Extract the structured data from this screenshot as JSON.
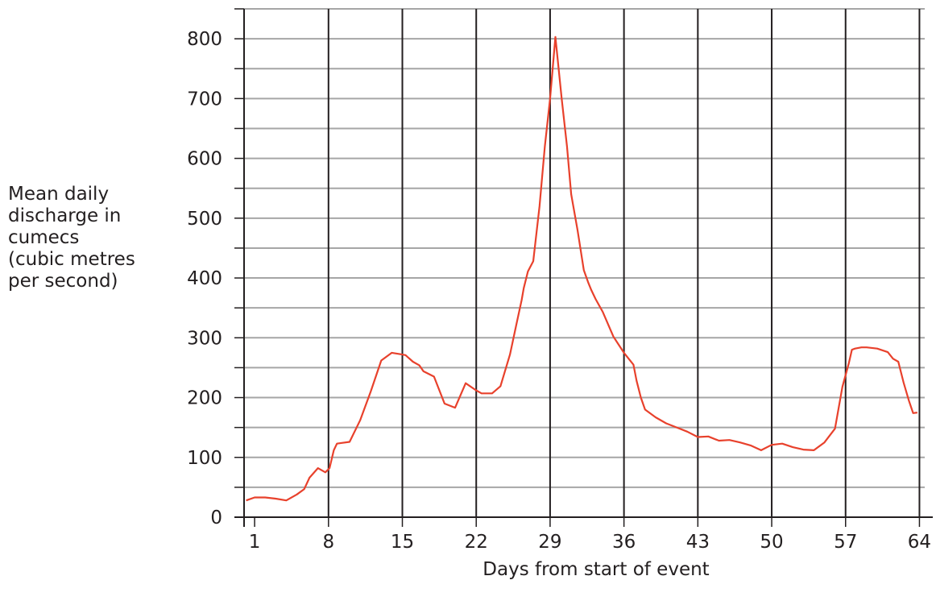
{
  "chart_data": {
    "type": "line",
    "xlabel": "Days from start of event",
    "ylabel": "Mean daily\ndischarge in\ncumecs\n(cubic metres\nper second)",
    "xlim": [
      0,
      64.5
    ],
    "ylim": [
      0,
      850
    ],
    "x_ticks": [
      1,
      8,
      15,
      22,
      29,
      36,
      43,
      50,
      57,
      64
    ],
    "y_ticks": [
      0,
      100,
      200,
      300,
      400,
      500,
      600,
      700,
      800
    ],
    "y_minor_step": 50,
    "grid": true,
    "series": [
      {
        "color": "#e8412c",
        "x": [
          0.2,
          1,
          2,
          3,
          4,
          5,
          5.7,
          6.2,
          7,
          7.7,
          8.1,
          8.5,
          8.8,
          9.2,
          10,
          11,
          12,
          13,
          14,
          15,
          15.3,
          16,
          16.6,
          17,
          18,
          19,
          20,
          21,
          22,
          22.5,
          23.5,
          24.3,
          25.2,
          25.8,
          26.3,
          26.5,
          26.9,
          27.4,
          28,
          28.5,
          29,
          29.5,
          30.1,
          30.6,
          31,
          31.6,
          32.2,
          32.6,
          32.9,
          33.3,
          34,
          35,
          36,
          36.9,
          37.2,
          37.6,
          38,
          39,
          40,
          41,
          42,
          43,
          44,
          45,
          46,
          47,
          48,
          49,
          50,
          51,
          52,
          53,
          54,
          55,
          56,
          56.7,
          57.3,
          57.6,
          57.9,
          58.5,
          59,
          60,
          61,
          61.5,
          62,
          62.5,
          63,
          63.4,
          63.8
        ],
        "y": [
          28,
          33,
          33,
          31,
          28,
          38,
          47,
          66,
          82,
          75,
          82,
          112,
          123,
          124,
          126,
          162,
          210,
          262,
          275,
          272,
          271,
          260,
          254,
          244,
          235,
          190,
          183,
          224,
          212,
          207,
          207,
          219,
          272,
          322,
          363,
          383,
          411,
          428,
          520,
          620,
          700,
          803,
          700,
          620,
          540,
          480,
          413,
          393,
          380,
          365,
          343,
          302,
          275,
          255,
          228,
          200,
          180,
          167,
          157,
          150,
          143,
          134,
          135,
          128,
          129,
          125,
          120,
          112,
          121,
          123,
          117,
          113,
          112,
          125,
          148,
          218,
          257,
          280,
          282,
          284,
          284,
          282,
          276,
          265,
          260,
          225,
          195,
          174,
          175
        ]
      }
    ]
  }
}
